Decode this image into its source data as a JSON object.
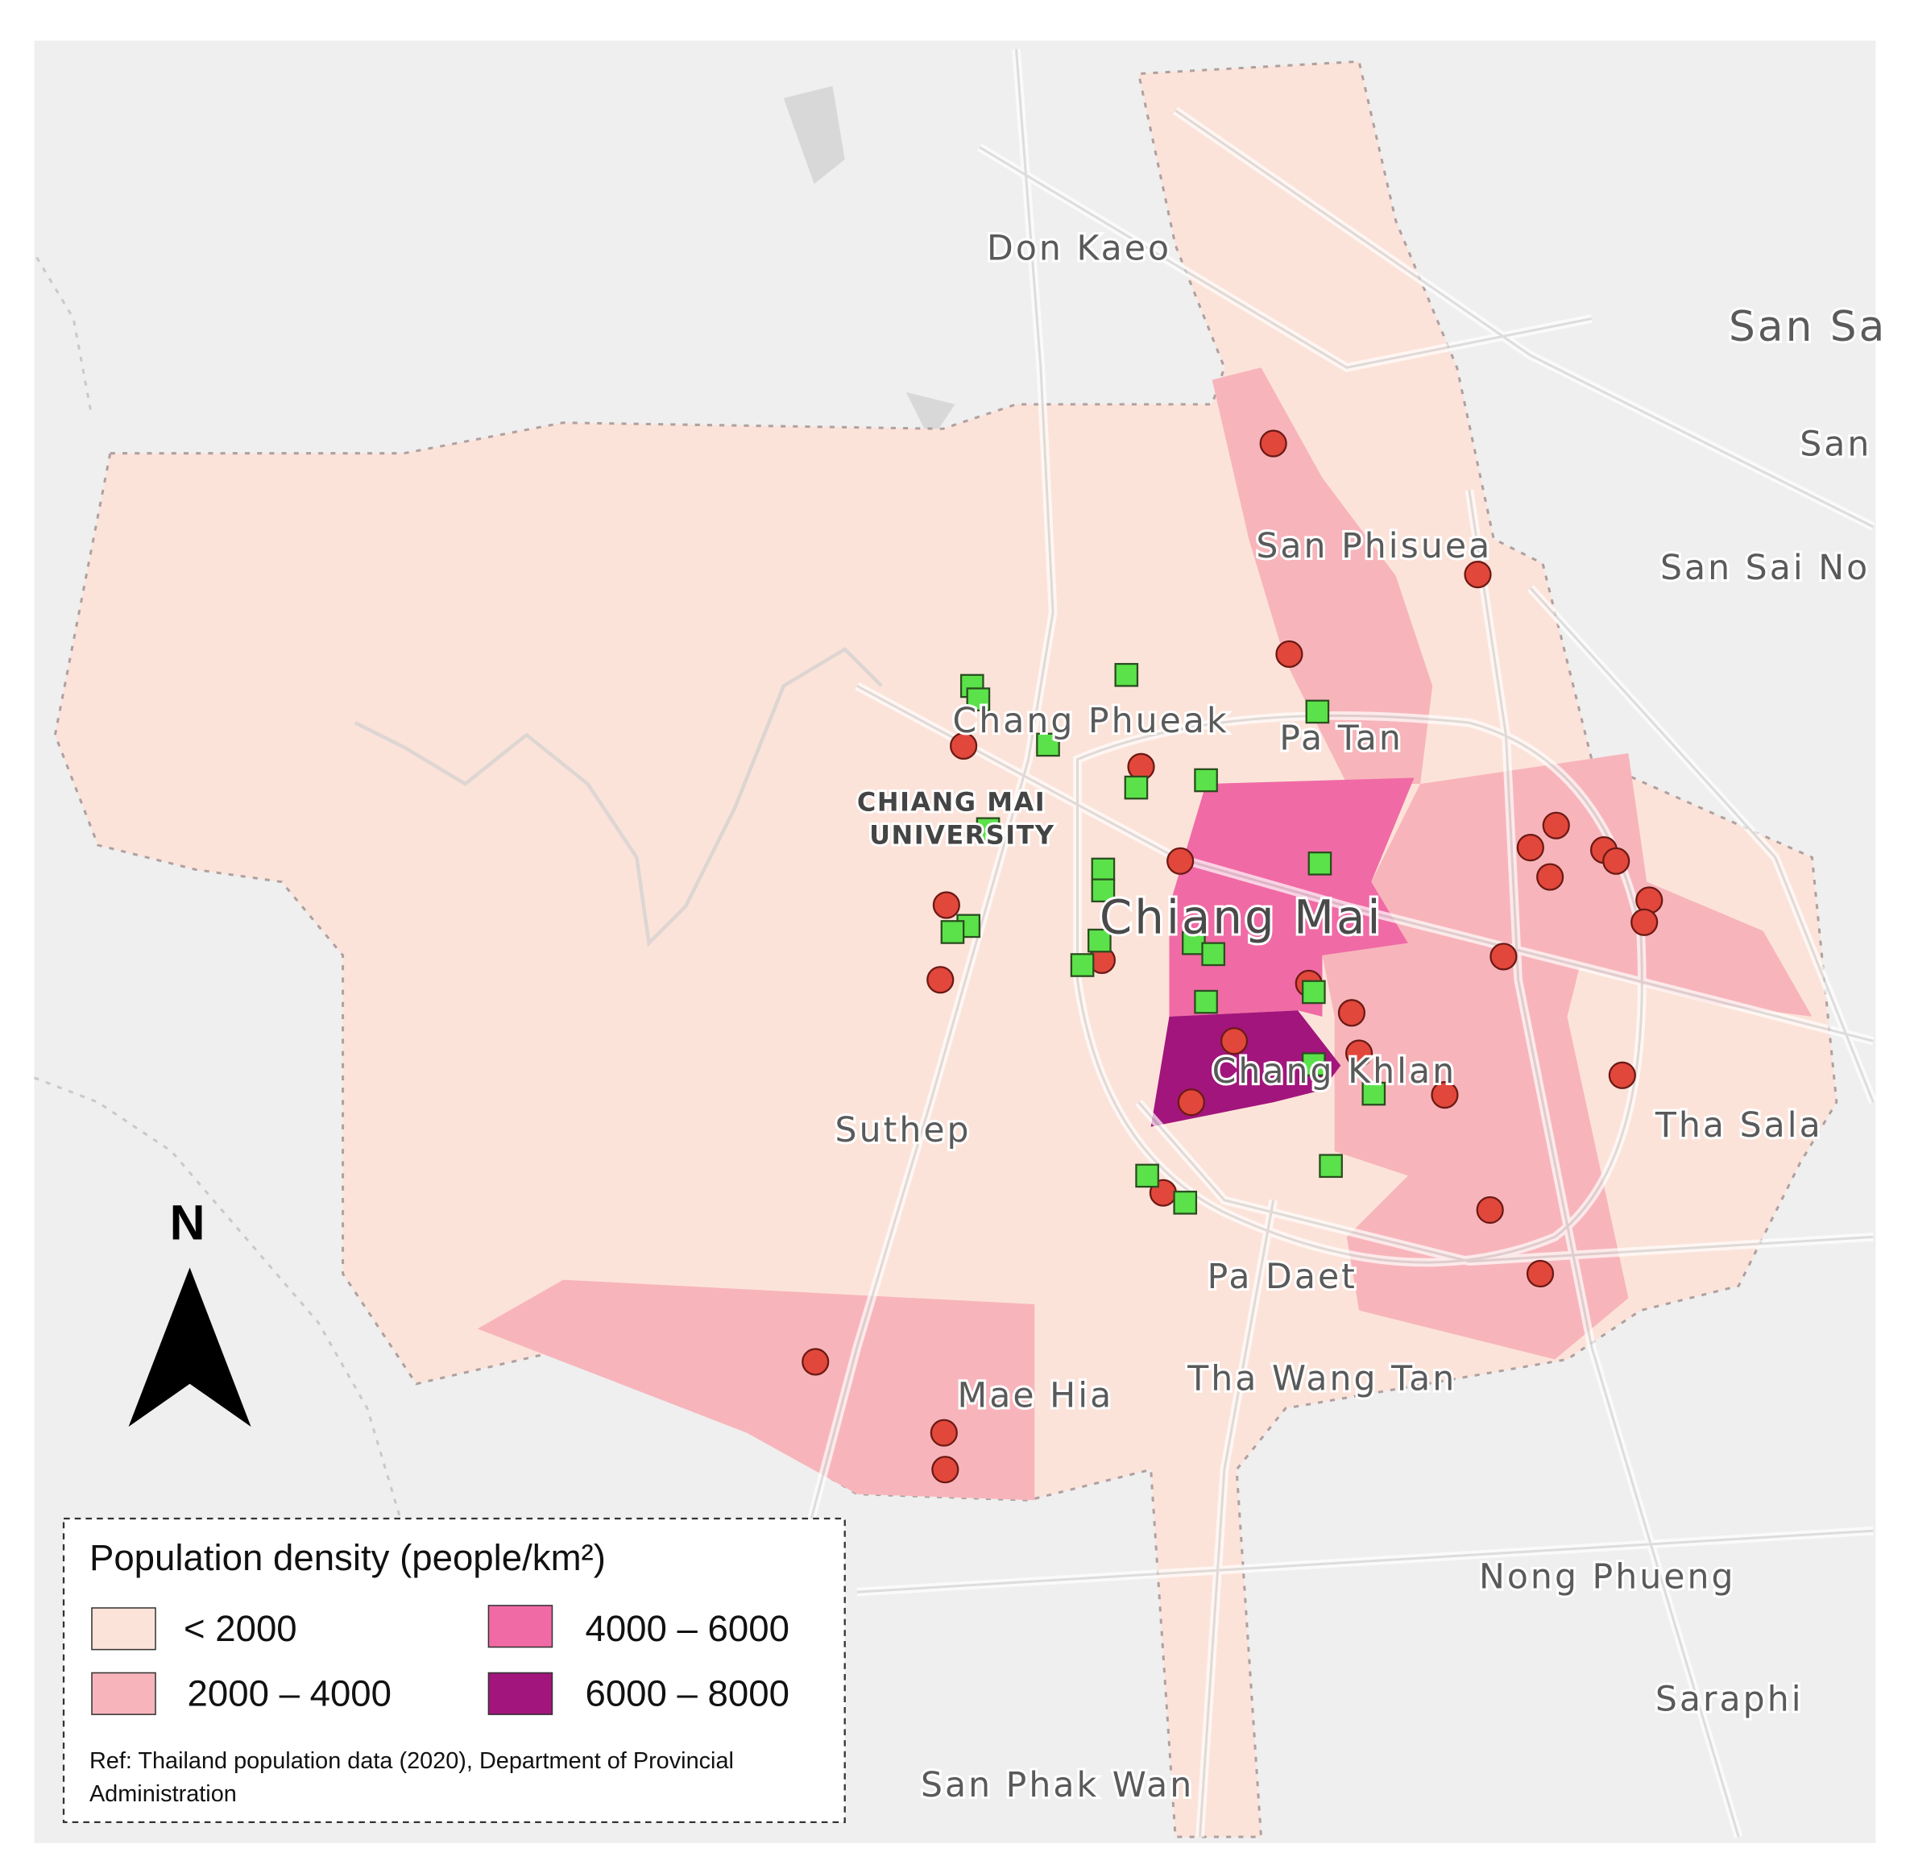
{
  "places": [
    "Don Kaeo",
    "San Sa",
    "San",
    "San Phisuea",
    "San Sai No",
    "Chang Phueak",
    "Pa Tan",
    "CHIANG MAI",
    "UNIVERSITY",
    "Chiang Mai",
    "Chang Khlan",
    "Suthep",
    "Tha Sala",
    "Pa Daet",
    "Mae Hia",
    "Tha Wang Tan",
    "Nong Phueng",
    "Saraphi",
    "San Phak Wan"
  ],
  "north_arrow": "N",
  "legend": {
    "title": "Population density (people/km²)",
    "items": [
      {
        "label": "< 2000",
        "color": "#fce3d9"
      },
      {
        "label": "2000 – 4000",
        "color": "#f7b5bb"
      },
      {
        "label": "4000 – 6000",
        "color": "#f06aa5"
      },
      {
        "label": "6000 – 8000",
        "color": "#a2157c"
      }
    ],
    "source": [
      "Ref: Thailand population data (2020), Department of Provincial",
      "Administration"
    ]
  }
}
